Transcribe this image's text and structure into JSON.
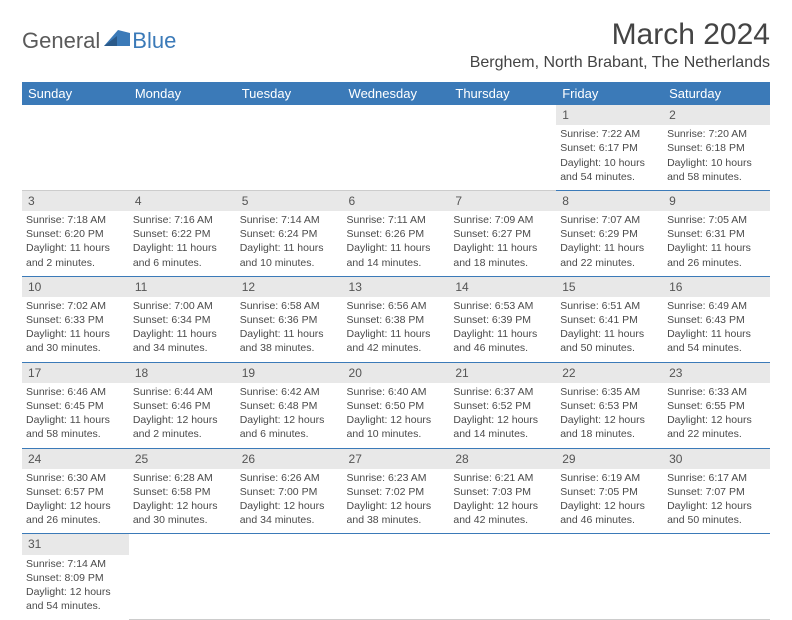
{
  "logo": {
    "text1": "General",
    "text2": "Blue"
  },
  "title": "March 2024",
  "location": "Berghem, North Brabant, The Netherlands",
  "colors": {
    "header_bg": "#3b7ab8",
    "daynum_bg": "#e8e8e8",
    "border": "#3b7ab8"
  },
  "weekdays": [
    "Sunday",
    "Monday",
    "Tuesday",
    "Wednesday",
    "Thursday",
    "Friday",
    "Saturday"
  ],
  "weeks": [
    {
      "nums": [
        "",
        "",
        "",
        "",
        "",
        "1",
        "2"
      ],
      "cells": [
        null,
        null,
        null,
        null,
        null,
        {
          "sr": "Sunrise: 7:22 AM",
          "ss": "Sunset: 6:17 PM",
          "dl": "Daylight: 10 hours and 54 minutes."
        },
        {
          "sr": "Sunrise: 7:20 AM",
          "ss": "Sunset: 6:18 PM",
          "dl": "Daylight: 10 hours and 58 minutes."
        }
      ]
    },
    {
      "nums": [
        "3",
        "4",
        "5",
        "6",
        "7",
        "8",
        "9"
      ],
      "cells": [
        {
          "sr": "Sunrise: 7:18 AM",
          "ss": "Sunset: 6:20 PM",
          "dl": "Daylight: 11 hours and 2 minutes."
        },
        {
          "sr": "Sunrise: 7:16 AM",
          "ss": "Sunset: 6:22 PM",
          "dl": "Daylight: 11 hours and 6 minutes."
        },
        {
          "sr": "Sunrise: 7:14 AM",
          "ss": "Sunset: 6:24 PM",
          "dl": "Daylight: 11 hours and 10 minutes."
        },
        {
          "sr": "Sunrise: 7:11 AM",
          "ss": "Sunset: 6:26 PM",
          "dl": "Daylight: 11 hours and 14 minutes."
        },
        {
          "sr": "Sunrise: 7:09 AM",
          "ss": "Sunset: 6:27 PM",
          "dl": "Daylight: 11 hours and 18 minutes."
        },
        {
          "sr": "Sunrise: 7:07 AM",
          "ss": "Sunset: 6:29 PM",
          "dl": "Daylight: 11 hours and 22 minutes."
        },
        {
          "sr": "Sunrise: 7:05 AM",
          "ss": "Sunset: 6:31 PM",
          "dl": "Daylight: 11 hours and 26 minutes."
        }
      ]
    },
    {
      "nums": [
        "10",
        "11",
        "12",
        "13",
        "14",
        "15",
        "16"
      ],
      "cells": [
        {
          "sr": "Sunrise: 7:02 AM",
          "ss": "Sunset: 6:33 PM",
          "dl": "Daylight: 11 hours and 30 minutes."
        },
        {
          "sr": "Sunrise: 7:00 AM",
          "ss": "Sunset: 6:34 PM",
          "dl": "Daylight: 11 hours and 34 minutes."
        },
        {
          "sr": "Sunrise: 6:58 AM",
          "ss": "Sunset: 6:36 PM",
          "dl": "Daylight: 11 hours and 38 minutes."
        },
        {
          "sr": "Sunrise: 6:56 AM",
          "ss": "Sunset: 6:38 PM",
          "dl": "Daylight: 11 hours and 42 minutes."
        },
        {
          "sr": "Sunrise: 6:53 AM",
          "ss": "Sunset: 6:39 PM",
          "dl": "Daylight: 11 hours and 46 minutes."
        },
        {
          "sr": "Sunrise: 6:51 AM",
          "ss": "Sunset: 6:41 PM",
          "dl": "Daylight: 11 hours and 50 minutes."
        },
        {
          "sr": "Sunrise: 6:49 AM",
          "ss": "Sunset: 6:43 PM",
          "dl": "Daylight: 11 hours and 54 minutes."
        }
      ]
    },
    {
      "nums": [
        "17",
        "18",
        "19",
        "20",
        "21",
        "22",
        "23"
      ],
      "cells": [
        {
          "sr": "Sunrise: 6:46 AM",
          "ss": "Sunset: 6:45 PM",
          "dl": "Daylight: 11 hours and 58 minutes."
        },
        {
          "sr": "Sunrise: 6:44 AM",
          "ss": "Sunset: 6:46 PM",
          "dl": "Daylight: 12 hours and 2 minutes."
        },
        {
          "sr": "Sunrise: 6:42 AM",
          "ss": "Sunset: 6:48 PM",
          "dl": "Daylight: 12 hours and 6 minutes."
        },
        {
          "sr": "Sunrise: 6:40 AM",
          "ss": "Sunset: 6:50 PM",
          "dl": "Daylight: 12 hours and 10 minutes."
        },
        {
          "sr": "Sunrise: 6:37 AM",
          "ss": "Sunset: 6:52 PM",
          "dl": "Daylight: 12 hours and 14 minutes."
        },
        {
          "sr": "Sunrise: 6:35 AM",
          "ss": "Sunset: 6:53 PM",
          "dl": "Daylight: 12 hours and 18 minutes."
        },
        {
          "sr": "Sunrise: 6:33 AM",
          "ss": "Sunset: 6:55 PM",
          "dl": "Daylight: 12 hours and 22 minutes."
        }
      ]
    },
    {
      "nums": [
        "24",
        "25",
        "26",
        "27",
        "28",
        "29",
        "30"
      ],
      "cells": [
        {
          "sr": "Sunrise: 6:30 AM",
          "ss": "Sunset: 6:57 PM",
          "dl": "Daylight: 12 hours and 26 minutes."
        },
        {
          "sr": "Sunrise: 6:28 AM",
          "ss": "Sunset: 6:58 PM",
          "dl": "Daylight: 12 hours and 30 minutes."
        },
        {
          "sr": "Sunrise: 6:26 AM",
          "ss": "Sunset: 7:00 PM",
          "dl": "Daylight: 12 hours and 34 minutes."
        },
        {
          "sr": "Sunrise: 6:23 AM",
          "ss": "Sunset: 7:02 PM",
          "dl": "Daylight: 12 hours and 38 minutes."
        },
        {
          "sr": "Sunrise: 6:21 AM",
          "ss": "Sunset: 7:03 PM",
          "dl": "Daylight: 12 hours and 42 minutes."
        },
        {
          "sr": "Sunrise: 6:19 AM",
          "ss": "Sunset: 7:05 PM",
          "dl": "Daylight: 12 hours and 46 minutes."
        },
        {
          "sr": "Sunrise: 6:17 AM",
          "ss": "Sunset: 7:07 PM",
          "dl": "Daylight: 12 hours and 50 minutes."
        }
      ]
    },
    {
      "nums": [
        "31",
        "",
        "",
        "",
        "",
        "",
        ""
      ],
      "cells": [
        {
          "sr": "Sunrise: 7:14 AM",
          "ss": "Sunset: 8:09 PM",
          "dl": "Daylight: 12 hours and 54 minutes."
        },
        null,
        null,
        null,
        null,
        null,
        null
      ]
    }
  ]
}
